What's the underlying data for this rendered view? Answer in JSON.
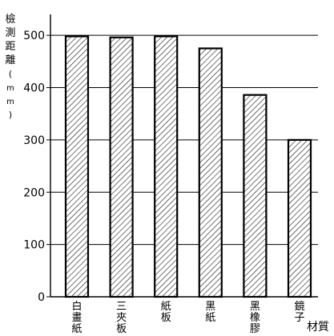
{
  "chart_data": {
    "type": "bar",
    "title": "",
    "ylabel": "檢測距離(mm)",
    "xlabel": "材質",
    "categories": [
      "白畫紙",
      "三夾板",
      "紙板",
      "黑紙",
      "黑橡膠",
      "鏡子"
    ],
    "values": [
      498,
      496,
      498,
      475,
      386,
      300
    ],
    "ylim": [
      0,
      540
    ],
    "yticks": [
      0,
      100,
      200,
      300,
      400,
      500
    ],
    "grid": true,
    "bar_fill": "diagonal-hatch",
    "colors": {
      "bar_stroke": "#000000",
      "hatch": "#000000",
      "grid": "#000000"
    }
  }
}
